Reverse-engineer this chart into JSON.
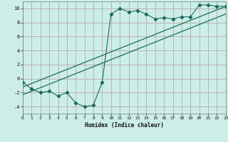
{
  "xlabel": "Humidex (Indice chaleur)",
  "bg_color": "#cceee8",
  "grid_color": "#b8a8a8",
  "line_color": "#1a6b5e",
  "xlim": [
    0,
    23
  ],
  "ylim": [
    -5,
    11
  ],
  "xticks": [
    0,
    1,
    2,
    3,
    4,
    5,
    6,
    7,
    8,
    9,
    10,
    11,
    12,
    13,
    14,
    15,
    16,
    17,
    18,
    19,
    20,
    21,
    22,
    23
  ],
  "yticks": [
    -4,
    -2,
    0,
    2,
    4,
    6,
    8,
    10
  ],
  "scatter_x": [
    0,
    1,
    2,
    3,
    4,
    5,
    6,
    7,
    8,
    9,
    10,
    11,
    12,
    13,
    14,
    15,
    16,
    17,
    18,
    19,
    20,
    21,
    22,
    23
  ],
  "scatter_y": [
    -0.5,
    -1.5,
    -2.0,
    -1.8,
    -2.5,
    -2.0,
    -3.5,
    -4.0,
    -3.8,
    -0.5,
    9.2,
    10.0,
    9.5,
    9.7,
    9.2,
    8.5,
    8.7,
    8.5,
    8.8,
    8.8,
    10.5,
    10.5,
    10.3,
    10.3
  ],
  "line1_x": [
    0,
    23
  ],
  "line1_y": [
    -1.2,
    10.3
  ],
  "line2_x": [
    0,
    23
  ],
  "line2_y": [
    -2.3,
    9.2
  ]
}
